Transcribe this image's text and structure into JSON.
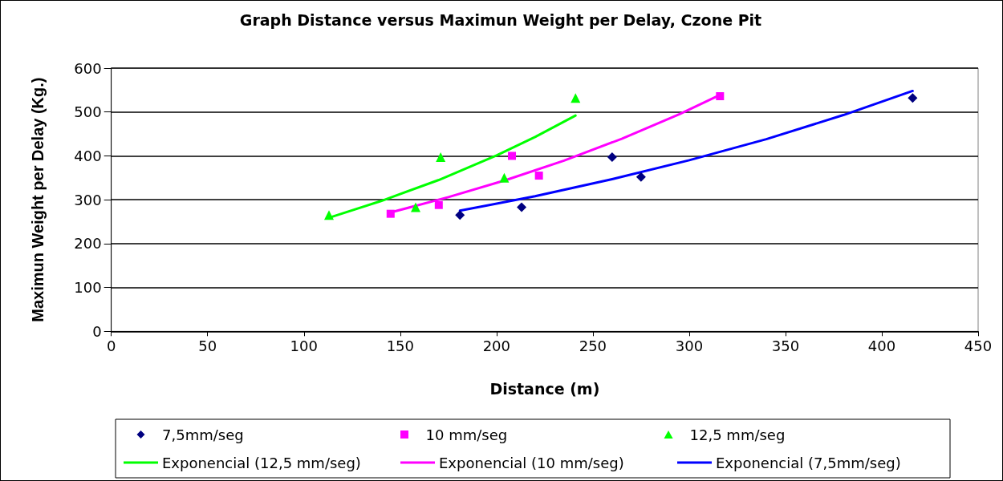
{
  "chart_data": {
    "type": "scatter",
    "title": "Graph Distance versus Maximun Weight per Delay, Czone Pit",
    "xlabel": "Distance (m)",
    "ylabel": "Maximun Weight per Delay (Kg.)",
    "xlim": [
      0,
      450
    ],
    "xticks": [
      0,
      50,
      100,
      150,
      200,
      250,
      300,
      350,
      400,
      450
    ],
    "ylim": [
      0,
      600
    ],
    "yticks": [
      0,
      100,
      200,
      300,
      400,
      500,
      600
    ],
    "grid": "y",
    "legend": "bottom",
    "series": [
      {
        "name": "7,5mm/seg",
        "color": "#000080",
        "marker": "diamond",
        "x": [
          181,
          213,
          260,
          275,
          416
        ],
        "values": [
          265,
          283,
          397,
          352,
          532
        ]
      },
      {
        "name": "10 mm/seg",
        "color": "#ff00ff",
        "marker": "square",
        "x": [
          145,
          170,
          208,
          222,
          316
        ],
        "values": [
          268,
          288,
          400,
          355,
          536
        ]
      },
      {
        "name": "12,5 mm/seg",
        "color": "#00ff00",
        "marker": "triangle",
        "x": [
          113,
          158,
          171,
          204,
          241
        ],
        "values": [
          265,
          283,
          397,
          350,
          532
        ]
      },
      {
        "name": "Exponencial (12,5 mm/seg)",
        "type": "line",
        "color": "#00ff00",
        "marker": "none",
        "line_style": "solid",
        "x": [
          113,
          140,
          170,
          200,
          220,
          241
        ],
        "values": [
          259,
          297,
          345,
          401,
          443,
          492
        ]
      },
      {
        "name": "Exponencial (10 mm/seg)",
        "type": "line",
        "color": "#ff00ff",
        "marker": "none",
        "line_style": "solid",
        "x": [
          145,
          175,
          205,
          235,
          265,
          295,
          316
        ],
        "values": [
          271,
          306,
          345,
          389,
          439,
          495,
          539
        ]
      },
      {
        "name": "Exponencial (7,5mm/seg)",
        "type": "line",
        "color": "#0000ff",
        "marker": "none",
        "line_style": "solid",
        "x": [
          181,
          220,
          260,
          300,
          340,
          380,
          416
        ],
        "values": [
          275,
          308,
          347,
          390,
          438,
          493,
          548
        ]
      }
    ]
  }
}
